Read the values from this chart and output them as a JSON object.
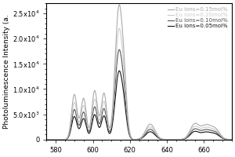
{
  "xlabel": "",
  "ylabel": "Photoluminescence Intensity (a.",
  "xlim": [
    575,
    675
  ],
  "ylim": [
    0,
    27000
  ],
  "yticks": [
    0,
    5000,
    10000,
    15000,
    20000,
    25000
  ],
  "xticks": [
    580,
    600,
    620,
    640,
    660
  ],
  "series": [
    {
      "key": "0.15",
      "label": "Eu ions=0.15mol%",
      "color": "#aaaaaa",
      "scale": 25500
    },
    {
      "key": "0.20",
      "label": "Eu ions=0.20mol%",
      "color": "#cccccc",
      "scale": 21000
    },
    {
      "key": "0.10",
      "label": "Eu ions=0.10mol%",
      "color": "#555555",
      "scale": 17000
    },
    {
      "key": "0.05",
      "label": "Eu ions=0.05mol%",
      "color": "#111111",
      "scale": 13000
    }
  ],
  "background_color": "#ffffff",
  "axis_fontsize": 6.5,
  "tick_fontsize": 6,
  "legend_fontsize": 5.0
}
